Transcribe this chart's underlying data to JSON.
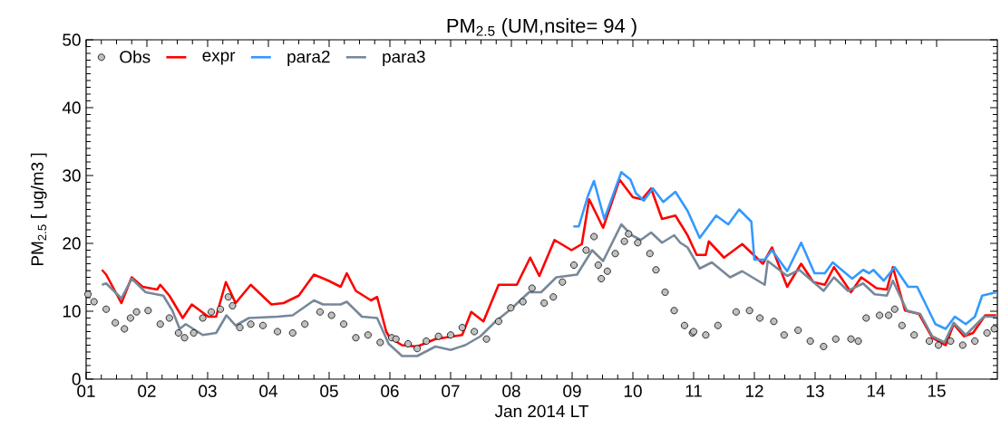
{
  "chart_data": {
    "type": "line",
    "title": "PM$_{2.5}$ (UM,nsite= 94 )",
    "xlabel": "Jan 2014 LT",
    "ylabel": "PM$_{2.5}$ [ ug/m3 ]",
    "xlim": [
      1,
      16
    ],
    "ylim": [
      0,
      50
    ],
    "xticks": [
      {
        "value": 1,
        "label": "01"
      },
      {
        "value": 2,
        "label": "02"
      },
      {
        "value": 3,
        "label": "03"
      },
      {
        "value": 4,
        "label": "04"
      },
      {
        "value": 5,
        "label": "05"
      },
      {
        "value": 6,
        "label": "06"
      },
      {
        "value": 7,
        "label": "07"
      },
      {
        "value": 8,
        "label": "08"
      },
      {
        "value": 9,
        "label": "09"
      },
      {
        "value": 10,
        "label": "10"
      },
      {
        "value": 11,
        "label": "11"
      },
      {
        "value": 12,
        "label": "12"
      },
      {
        "value": 13,
        "label": "13"
      },
      {
        "value": 14,
        "label": "14"
      },
      {
        "value": 15,
        "label": "15"
      }
    ],
    "yticks": [
      0,
      10,
      20,
      30,
      40,
      50
    ],
    "grid": false,
    "legend": "top left",
    "series": [
      {
        "name": "Obs",
        "type": "scatter",
        "marker": "circle",
        "color": "#c0c0c0",
        "x": [
          1.03,
          1.13,
          1.33,
          1.48,
          1.63,
          1.73,
          1.83,
          2.02,
          2.22,
          2.37,
          2.52,
          2.62,
          2.77,
          2.92,
          3.06,
          3.21,
          3.34,
          3.41,
          3.53,
          3.71,
          3.91,
          4.15,
          4.4,
          4.6,
          4.85,
          5.04,
          5.24,
          5.44,
          5.64,
          5.84,
          6.03,
          6.1,
          6.3,
          6.45,
          6.6,
          6.8,
          7.0,
          7.19,
          7.39,
          7.59,
          7.79,
          7.99,
          8.19,
          8.34,
          8.54,
          8.69,
          8.84,
          9.03,
          9.23,
          9.36,
          9.43,
          9.48,
          9.58,
          9.71,
          9.86,
          9.93,
          10.08,
          10.28,
          10.38,
          10.53,
          10.68,
          10.85,
          10.98,
          11.0,
          11.2,
          11.4,
          11.7,
          11.92,
          12.09,
          12.32,
          12.49,
          12.72,
          12.92,
          13.14,
          13.34,
          13.59,
          13.71,
          13.84,
          14.06,
          14.21,
          14.31,
          14.43,
          14.63,
          14.88,
          15.03,
          15.23,
          15.43,
          15.63,
          15.83,
          15.95
        ],
        "values": [
          12.5,
          11.4,
          10.3,
          8.3,
          7.4,
          9.0,
          9.9,
          10.1,
          8.1,
          9.0,
          6.8,
          6.1,
          6.8,
          9.0,
          9.9,
          10.3,
          12.1,
          10.8,
          7.6,
          8.1,
          7.9,
          7.0,
          6.8,
          8.1,
          9.9,
          9.4,
          8.1,
          6.1,
          6.5,
          5.4,
          6.1,
          5.9,
          5.2,
          4.5,
          5.6,
          6.3,
          6.5,
          7.6,
          7.0,
          5.9,
          8.5,
          10.5,
          11.4,
          13.4,
          11.2,
          12.1,
          14.3,
          16.8,
          19.0,
          21.0,
          16.8,
          14.8,
          15.9,
          18.5,
          20.3,
          21.4,
          20.1,
          18.5,
          16.1,
          12.8,
          10.1,
          7.9,
          6.8,
          7.0,
          6.5,
          7.9,
          9.9,
          10.1,
          9.0,
          8.5,
          6.5,
          7.2,
          5.6,
          4.8,
          5.9,
          5.9,
          5.6,
          9.0,
          9.4,
          9.4,
          10.3,
          7.9,
          6.5,
          5.6,
          5.0,
          5.6,
          5.0,
          5.6,
          6.8,
          7.4
        ]
      },
      {
        "name": "expr",
        "color": "#ff0000",
        "x": [
          1.26,
          1.33,
          1.58,
          1.75,
          1.93,
          2.17,
          2.22,
          2.37,
          2.59,
          2.74,
          3.01,
          3.14,
          3.3,
          3.46,
          3.71,
          4.05,
          4.25,
          4.5,
          4.75,
          4.99,
          5.19,
          5.29,
          5.44,
          5.69,
          5.79,
          5.94,
          6.0,
          6.2,
          6.45,
          6.75,
          7.19,
          7.34,
          7.54,
          7.79,
          8.09,
          8.31,
          8.46,
          8.71,
          8.99,
          9.16,
          9.28,
          9.51,
          9.78,
          10.0,
          10.15,
          10.3,
          10.48,
          10.7,
          10.9,
          11.05,
          11.2,
          11.25,
          11.5,
          11.8,
          12.14,
          12.29,
          12.54,
          12.77,
          12.97,
          13.16,
          13.31,
          13.59,
          13.76,
          14.01,
          14.18,
          14.28,
          14.48,
          14.71,
          14.93,
          15.15,
          15.28,
          15.45,
          15.6,
          15.8,
          15.98
        ],
        "values": [
          16.1,
          15.4,
          11.2,
          15.0,
          13.6,
          13.2,
          13.9,
          12.3,
          9.0,
          11.0,
          9.2,
          9.2,
          14.3,
          11.2,
          13.9,
          11.0,
          11.2,
          12.3,
          15.4,
          14.5,
          13.6,
          15.6,
          13.0,
          11.6,
          12.1,
          7.0,
          6.1,
          5.0,
          4.8,
          5.9,
          6.5,
          9.9,
          8.5,
          13.9,
          13.9,
          17.9,
          15.2,
          20.5,
          19.0,
          19.9,
          26.5,
          22.3,
          29.4,
          26.8,
          26.5,
          28.1,
          23.6,
          24.1,
          21.2,
          18.3,
          18.3,
          20.3,
          17.9,
          19.9,
          17.0,
          19.4,
          13.6,
          17.0,
          14.3,
          13.9,
          16.5,
          12.8,
          15.0,
          13.4,
          13.2,
          16.5,
          10.1,
          9.6,
          6.1,
          5.0,
          8.1,
          6.3,
          6.8,
          9.4,
          9.4
        ]
      },
      {
        "name": "para2",
        "color": "#3399ff",
        "x": [
          9.02,
          9.11,
          9.26,
          9.36,
          9.53,
          9.81,
          9.96,
          10.05,
          10.18,
          10.33,
          10.5,
          10.7,
          10.9,
          11.1,
          11.37,
          11.57,
          11.75,
          11.95,
          12.0,
          12.17,
          12.29,
          12.54,
          12.77,
          12.99,
          13.16,
          13.29,
          13.61,
          13.79,
          13.89,
          13.96,
          14.13,
          14.31,
          14.53,
          14.68,
          14.98,
          15.15,
          15.3,
          15.48,
          15.63,
          15.75,
          15.98
        ],
        "values": [
          22.5,
          22.5,
          27.0,
          29.2,
          23.6,
          30.5,
          29.4,
          27.4,
          26.3,
          28.1,
          26.1,
          27.6,
          24.8,
          20.8,
          24.1,
          22.8,
          25.0,
          23.2,
          17.6,
          17.6,
          19.0,
          15.9,
          20.1,
          15.6,
          15.6,
          17.2,
          14.8,
          16.1,
          15.6,
          16.1,
          14.5,
          16.5,
          13.6,
          13.6,
          8.1,
          7.4,
          9.2,
          8.1,
          9.2,
          12.3,
          12.8
        ]
      },
      {
        "name": "para3",
        "color": "#778899",
        "x": [
          1.26,
          1.33,
          1.58,
          1.75,
          1.98,
          2.27,
          2.42,
          2.54,
          2.64,
          2.92,
          3.14,
          3.31,
          3.46,
          3.68,
          4.15,
          4.4,
          4.75,
          4.9,
          5.19,
          5.29,
          5.54,
          5.79,
          5.98,
          6.14,
          6.2,
          6.45,
          6.75,
          7.0,
          7.24,
          7.49,
          7.74,
          7.99,
          8.29,
          8.49,
          8.74,
          9.08,
          9.33,
          9.51,
          9.81,
          9.98,
          10.13,
          10.3,
          10.48,
          10.68,
          10.78,
          10.9,
          11.1,
          11.3,
          11.6,
          11.8,
          12.17,
          12.22,
          12.54,
          12.74,
          13.14,
          13.31,
          13.54,
          13.79,
          13.98,
          14.18,
          14.28,
          14.51,
          14.73,
          14.93,
          15.13,
          15.28,
          15.48,
          15.78,
          15.98
        ],
        "values": [
          13.9,
          14.1,
          11.9,
          14.8,
          12.8,
          12.3,
          10.1,
          7.4,
          8.1,
          6.5,
          6.8,
          9.4,
          7.9,
          9.0,
          9.2,
          9.4,
          11.6,
          11.0,
          11.0,
          11.4,
          9.2,
          9.0,
          5.2,
          3.9,
          3.4,
          3.4,
          4.8,
          4.3,
          5.0,
          6.3,
          8.5,
          10.3,
          12.8,
          12.8,
          15.0,
          15.4,
          19.0,
          17.4,
          22.8,
          21.2,
          20.5,
          21.6,
          20.1,
          21.2,
          20.1,
          19.4,
          16.3,
          17.2,
          15.0,
          15.9,
          13.9,
          17.4,
          15.2,
          16.1,
          13.0,
          15.0,
          13.0,
          14.1,
          12.5,
          12.3,
          14.5,
          10.1,
          9.6,
          6.3,
          5.4,
          8.3,
          6.5,
          9.2,
          9.2
        ]
      }
    ]
  }
}
